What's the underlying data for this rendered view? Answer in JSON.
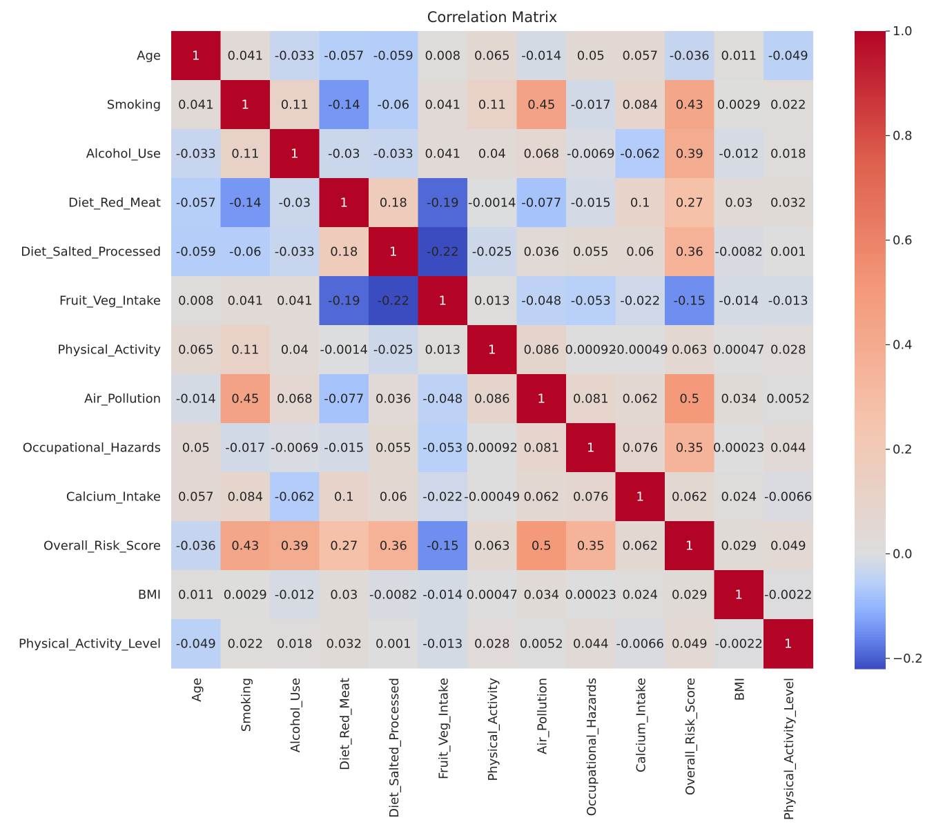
{
  "chart_data": {
    "type": "heatmap",
    "title": "Correlation Matrix",
    "xlabel": "",
    "ylabel": "",
    "variables": [
      "Age",
      "Smoking",
      "Alcohol_Use",
      "Diet_Red_Meat",
      "Diet_Salted_Processed",
      "Fruit_Veg_Intake",
      "Physical_Activity",
      "Air_Pollution",
      "Occupational_Hazards",
      "Calcium_Intake",
      "Overall_Risk_Score",
      "BMI",
      "Physical_Activity_Level"
    ],
    "matrix": [
      [
        "1",
        "0.041",
        "-0.033",
        "-0.057",
        "-0.059",
        "0.008",
        "0.065",
        "-0.014",
        "0.05",
        "0.057",
        "-0.036",
        "0.011",
        "-0.049"
      ],
      [
        "0.041",
        "1",
        "0.11",
        "-0.14",
        "-0.06",
        "0.041",
        "0.11",
        "0.45",
        "-0.017",
        "0.084",
        "0.43",
        "0.0029",
        "0.022"
      ],
      [
        "-0.033",
        "0.11",
        "1",
        "-0.03",
        "-0.033",
        "0.041",
        "0.04",
        "0.068",
        "-0.0069",
        "-0.062",
        "0.39",
        "-0.012",
        "0.018"
      ],
      [
        "-0.057",
        "-0.14",
        "-0.03",
        "1",
        "0.18",
        "-0.19",
        "-0.0014",
        "-0.077",
        "-0.015",
        "0.1",
        "0.27",
        "0.03",
        "0.032"
      ],
      [
        "-0.059",
        "-0.06",
        "-0.033",
        "0.18",
        "1",
        "-0.22",
        "-0.025",
        "0.036",
        "0.055",
        "0.06",
        "0.36",
        "-0.0082",
        "0.001"
      ],
      [
        "0.008",
        "0.041",
        "0.041",
        "-0.19",
        "-0.22",
        "1",
        "0.013",
        "-0.048",
        "-0.053",
        "-0.022",
        "-0.15",
        "-0.014",
        "-0.013"
      ],
      [
        "0.065",
        "0.11",
        "0.04",
        "-0.0014",
        "-0.025",
        "0.013",
        "1",
        "0.086",
        "0.00092",
        "-0.00049",
        "0.063",
        "0.00047",
        "0.028"
      ],
      [
        "-0.014",
        "0.45",
        "0.068",
        "-0.077",
        "0.036",
        "-0.048",
        "0.086",
        "1",
        "0.081",
        "0.062",
        "0.5",
        "0.034",
        "0.0052"
      ],
      [
        "0.05",
        "-0.017",
        "-0.0069",
        "-0.015",
        "0.055",
        "-0.053",
        "0.00092",
        "0.081",
        "1",
        "0.076",
        "0.35",
        "0.00023",
        "0.044"
      ],
      [
        "0.057",
        "0.084",
        "-0.062",
        "0.1",
        "0.06",
        "-0.022",
        "-0.00049",
        "0.062",
        "0.076",
        "1",
        "0.062",
        "0.024",
        "-0.0066"
      ],
      [
        "-0.036",
        "0.43",
        "0.39",
        "0.27",
        "0.36",
        "-0.15",
        "0.063",
        "0.5",
        "0.35",
        "0.062",
        "1",
        "0.029",
        "0.049"
      ],
      [
        "0.011",
        "0.0029",
        "-0.012",
        "0.03",
        "-0.0082",
        "-0.014",
        "0.00047",
        "0.034",
        "0.00023",
        "0.024",
        "0.029",
        "1",
        "-0.0022"
      ],
      [
        "-0.049",
        "0.022",
        "0.018",
        "0.032",
        "0.001",
        "-0.013",
        "0.028",
        "0.0052",
        "0.044",
        "-0.0066",
        "0.049",
        "-0.0022",
        "1"
      ]
    ],
    "colorbar": {
      "min": -0.22,
      "max": 1.0,
      "center": 0,
      "colormap": "coolwarm",
      "ticks": [
        "−0.2",
        "0.0",
        "0.2",
        "0.4",
        "0.6",
        "0.8",
        "1.0"
      ]
    },
    "grid": false,
    "legend": "colorbar-right"
  }
}
